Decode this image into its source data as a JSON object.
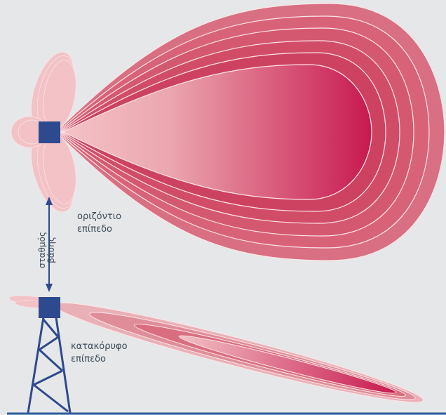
{
  "labels": {
    "horizontal_plane": [
      "οριζόντιο",
      "επίπεδο"
    ],
    "vertical_plane": [
      "κατακόρυφο",
      "επίπεδο"
    ],
    "base_station": [
      "σταθμός",
      "βάσης"
    ]
  },
  "colors": {
    "background": "#e6e7e8",
    "lobe_dark": "#c8194f",
    "lobe_light": "#f4c3c7",
    "antenna": "#2e4a8f",
    "ground": "#2e5b9a",
    "arrow": "#2e4a8f"
  }
}
